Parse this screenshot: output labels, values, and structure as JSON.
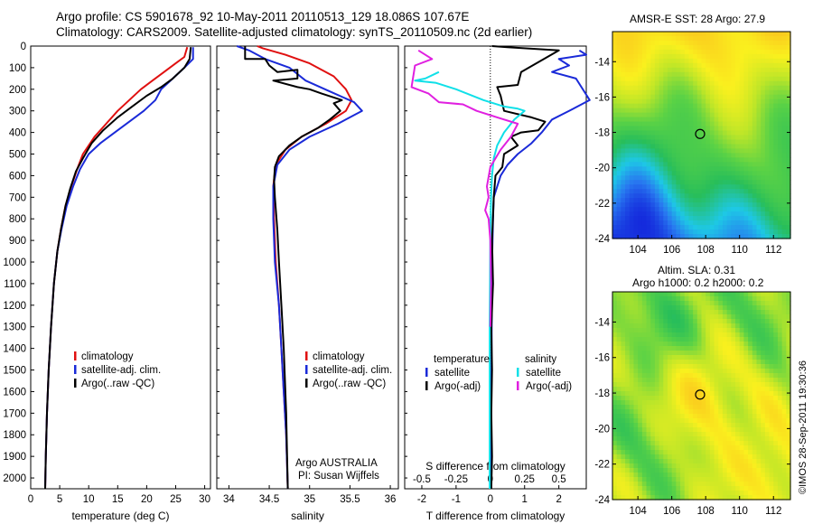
{
  "header": {
    "line1": "Argo profile: CS 5901678_92 10-May-2011 20110513_129 18.086S 107.67E",
    "line2": "Climatology: CARS2009. Satellite-adjusted climatology: synTS_20110509.nc (2d earlier)"
  },
  "colors": {
    "climatology": "#e01010",
    "satellite": "#1a2ad8",
    "argo": "#000000",
    "satellite_s": "#10e0e8",
    "argo_s": "#e020e0"
  },
  "chart_data": [
    {
      "type": "line",
      "id": "temperature",
      "xlabel": "temperature (deg C)",
      "ylabel": "",
      "xlim": [
        0,
        31
      ],
      "ylim": [
        0,
        2050
      ],
      "yreverse": true,
      "xticks": [
        0,
        5,
        10,
        15,
        20,
        25,
        30
      ],
      "yticks": [
        0,
        100,
        200,
        300,
        400,
        500,
        600,
        700,
        800,
        900,
        1000,
        1100,
        1200,
        1300,
        1400,
        1500,
        1600,
        1700,
        1800,
        1900,
        2000
      ],
      "legend": [
        "climatology",
        "satellite-adj. clim.",
        "Argo(..raw -QC)"
      ],
      "series": [
        {
          "name": "climatology",
          "color": "#e01010",
          "x": [
            27.0,
            26.5,
            25.0,
            23.0,
            21.0,
            19.0,
            17.0,
            15.0,
            13.0,
            11.0,
            9.0,
            8.0,
            7.0,
            6.0,
            5.2,
            4.6,
            4.0,
            3.5,
            3.1,
            2.8,
            2.6,
            2.5
          ],
          "y": [
            5,
            50,
            80,
            120,
            160,
            200,
            250,
            300,
            360,
            420,
            500,
            570,
            650,
            740,
            850,
            950,
            1100,
            1300,
            1500,
            1700,
            1900,
            2050
          ]
        },
        {
          "name": "satellite-adj. clim.",
          "color": "#1a2ad8",
          "x": [
            28.0,
            28.0,
            26.5,
            24.5,
            22.5,
            21.5,
            19.5,
            17.0,
            14.5,
            12.0,
            10.0,
            8.5,
            7.3,
            6.2,
            5.3,
            4.6,
            4.0,
            3.5,
            3.1,
            2.8,
            2.6,
            2.5
          ],
          "y": [
            5,
            60,
            100,
            150,
            200,
            250,
            300,
            350,
            400,
            450,
            500,
            570,
            650,
            740,
            850,
            950,
            1100,
            1300,
            1500,
            1700,
            1900,
            2050
          ]
        },
        {
          "name": "Argo(..raw -QC)",
          "color": "#000000",
          "x": [
            27.6,
            27.4,
            26.5,
            24.5,
            22.5,
            20.0,
            17.5,
            15.0,
            12.5,
            10.5,
            9.0,
            7.8,
            6.8,
            6.0,
            5.2,
            4.6,
            4.0,
            3.5,
            3.1,
            2.8,
            2.6,
            2.5
          ],
          "y": [
            5,
            60,
            100,
            150,
            190,
            230,
            280,
            330,
            390,
            450,
            520,
            580,
            660,
            740,
            850,
            950,
            1100,
            1300,
            1500,
            1700,
            1900,
            2050
          ]
        }
      ]
    },
    {
      "type": "line",
      "id": "salinity",
      "xlabel": "salinity",
      "ylabel": "",
      "xlim": [
        33.85,
        36.1
      ],
      "ylim": [
        0,
        2050
      ],
      "yreverse": true,
      "xticks": [
        34,
        34.5,
        35,
        35.5,
        36
      ],
      "legend": [
        "climatology",
        "satellite-adj. clim.",
        "Argo(..raw -QC)"
      ],
      "annotation": [
        "Argo AUSTRALIA",
        "PI: Susan Wijffels"
      ],
      "series": [
        {
          "name": "climatology",
          "color": "#e01010",
          "x": [
            34.35,
            34.42,
            34.7,
            35.0,
            35.3,
            35.45,
            35.52,
            35.45,
            35.2,
            34.9,
            34.7,
            34.58,
            34.55,
            34.56,
            34.58,
            34.62,
            34.65,
            34.68,
            34.71,
            34.73
          ],
          "y": [
            0,
            10,
            40,
            80,
            140,
            200,
            250,
            300,
            360,
            420,
            480,
            550,
            650,
            800,
            1000,
            1200,
            1400,
            1600,
            1800,
            2050
          ]
        },
        {
          "name": "satellite-adj. clim.",
          "color": "#1a2ad8",
          "x": [
            34.1,
            34.25,
            34.45,
            34.75,
            34.95,
            35.25,
            35.55,
            35.65,
            35.35,
            35.0,
            34.75,
            34.6,
            34.55,
            34.55,
            34.57,
            34.62,
            34.65,
            34.68,
            34.71,
            34.73
          ],
          "y": [
            0,
            20,
            60,
            100,
            160,
            210,
            260,
            300,
            360,
            420,
            480,
            550,
            650,
            800,
            1000,
            1200,
            1400,
            1600,
            1800,
            2050
          ]
        },
        {
          "name": "Argo(..raw -QC)",
          "color": "#000000",
          "x": [
            34.2,
            34.2,
            34.45,
            34.5,
            34.6,
            34.85,
            34.85,
            34.55,
            34.85,
            35.0,
            35.15,
            35.4,
            35.3,
            35.38,
            35.25,
            35.1,
            34.9,
            34.75,
            34.62,
            34.57,
            34.56,
            34.57,
            34.6,
            34.62,
            34.65,
            34.68,
            34.71,
            34.73
          ],
          "y": [
            0,
            60,
            60,
            90,
            120,
            110,
            150,
            160,
            190,
            200,
            220,
            250,
            265,
            300,
            340,
            380,
            420,
            460,
            510,
            560,
            620,
            700,
            850,
            1000,
            1200,
            1400,
            1700,
            2050
          ]
        }
      ]
    },
    {
      "type": "line",
      "id": "difference",
      "xlabel": "T difference from climatology",
      "xlabel_top": "S difference from climatology",
      "xlim": [
        -2.5,
        2.8
      ],
      "ylim": [
        0,
        2050
      ],
      "yreverse": true,
      "xticks": [
        -2,
        -1,
        0,
        1,
        2
      ],
      "xticks_top": [
        {
          "v": -0.5,
          "label": "-0.5"
        },
        {
          "v": -0.25,
          "label": "-0.25"
        },
        {
          "v": 0,
          "label": "0"
        },
        {
          "v": 0.25,
          "label": "0.25"
        },
        {
          "v": 0.5,
          "label": "0.5"
        }
      ],
      "legend_headers": [
        "temperature",
        "salinity"
      ],
      "legend": [
        "satellite",
        "Argo(-adj)",
        "satellite",
        "Argo(-adj)"
      ],
      "series": [
        {
          "name": "T satellite",
          "color": "#1a2ad8",
          "x": [
            2.6,
            2.8,
            2.0,
            2.3,
            1.8,
            2.5,
            2.9,
            2.3,
            1.8,
            1.5,
            1.2,
            0.8,
            0.5,
            0.3,
            0.2,
            0.1,
            0.08,
            0.05,
            0.04,
            0.03,
            0.02,
            0.02
          ],
          "y": [
            20,
            40,
            60,
            90,
            120,
            150,
            250,
            300,
            340,
            400,
            450,
            500,
            550,
            600,
            650,
            700,
            800,
            1000,
            1300,
            1600,
            1900,
            2050
          ]
        },
        {
          "name": "T Argo(-adj)",
          "color": "#000000",
          "x": [
            0.05,
            0.5,
            2.0,
            0.9,
            0.8,
            0.2,
            0.3,
            0.4,
            1.2,
            1.6,
            1.4,
            0.9,
            0.6,
            0.8,
            0.4,
            0.35,
            0.15,
            0.1,
            0.05,
            0.08,
            0.03,
            0.05,
            0.03,
            0.05,
            0.03
          ],
          "y": [
            0,
            5,
            20,
            120,
            180,
            190,
            230,
            300,
            330,
            350,
            390,
            400,
            420,
            460,
            500,
            560,
            600,
            700,
            900,
            1100,
            1300,
            1500,
            1700,
            1900,
            2050
          ]
        },
        {
          "name": "S satellite",
          "color": "#10e0e8",
          "x": [
            -1.5,
            -1.9,
            -2.2,
            -1.6,
            -1.0,
            -0.2,
            0.4,
            0.8,
            1.0,
            0.7,
            0.4,
            0.2,
            0.1,
            0.05,
            0.02,
            0.0,
            -0.02,
            -0.02
          ],
          "y": [
            120,
            150,
            160,
            170,
            200,
            250,
            280,
            290,
            300,
            340,
            400,
            460,
            520,
            600,
            700,
            900,
            1300,
            2050
          ]
        },
        {
          "name": "S Argo(-adj)",
          "color": "#e020e0",
          "x": [
            -2.1,
            -1.7,
            -2.2,
            -2.3,
            -1.8,
            -1.5,
            -0.8,
            -0.4,
            0.2,
            0.8,
            0.6,
            0.3,
            0.0,
            -0.1,
            -0.05,
            -0.15,
            -0.05,
            0.0,
            0.02,
            0.0
          ],
          "y": [
            20,
            60,
            90,
            190,
            220,
            260,
            270,
            300,
            330,
            360,
            420,
            480,
            560,
            650,
            700,
            760,
            800,
            900,
            1100,
            1300
          ]
        }
      ]
    },
    {
      "type": "heatmap",
      "id": "sst-map",
      "title": "AMSR-E SST: 28 Argo: 27.9",
      "xlim": [
        102.5,
        113
      ],
      "ylim": [
        -24,
        -12.3
      ],
      "xticks": [
        104,
        106,
        108,
        110,
        112
      ],
      "yticks": [
        -14,
        -16,
        -18,
        -20,
        -22,
        -24
      ],
      "marker": {
        "lon": 107.67,
        "lat": -18.086
      }
    },
    {
      "type": "heatmap",
      "id": "sla-map",
      "title": "Altim. SLA: 0.31",
      "subtitle": "Argo h1000: 0.2 h2000: 0.2",
      "xlim": [
        102.5,
        113
      ],
      "ylim": [
        -24,
        -12.3
      ],
      "xticks": [
        104,
        106,
        108,
        110,
        112
      ],
      "yticks": [
        -14,
        -16,
        -18,
        -20,
        -22,
        -24
      ],
      "marker": {
        "lon": 107.67,
        "lat": -18.086
      }
    }
  ],
  "footer": {
    "stamp": "©IMOS 28-Sep-2011 19:30:36"
  }
}
